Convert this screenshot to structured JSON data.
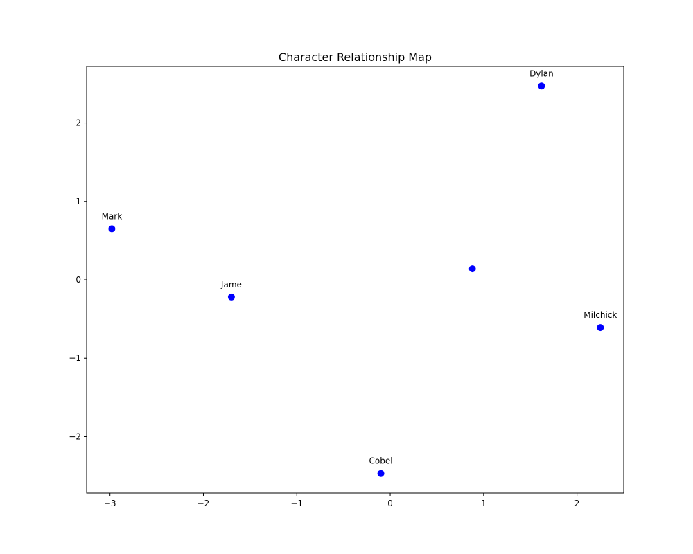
{
  "chart_data": {
    "type": "scatter",
    "title": "Character Relationship Map",
    "xlabel": "",
    "ylabel": "",
    "xlim": [
      -3.25,
      2.5
    ],
    "ylim": [
      -2.72,
      2.72
    ],
    "xticks": [
      -3,
      -2,
      -1,
      0,
      1,
      2
    ],
    "yticks": [
      -2,
      -1,
      0,
      1,
      2
    ],
    "xtick_labels": [
      "−3",
      "−2",
      "−1",
      "0",
      "1",
      "2"
    ],
    "ytick_labels": [
      "−2",
      "−1",
      "0",
      "1",
      "2"
    ],
    "grid": false,
    "marker_color": "#0000ff",
    "points": [
      {
        "label": "Mark",
        "x": -2.98,
        "y": 0.65
      },
      {
        "label": "Jame",
        "x": -1.7,
        "y": -0.22
      },
      {
        "label": "Cobel",
        "x": -0.1,
        "y": -2.47
      },
      {
        "label": "",
        "x": 0.88,
        "y": 0.14
      },
      {
        "label": "Dylan",
        "x": 1.62,
        "y": 2.47
      },
      {
        "label": "Milchick",
        "x": 2.25,
        "y": -0.61
      }
    ]
  }
}
